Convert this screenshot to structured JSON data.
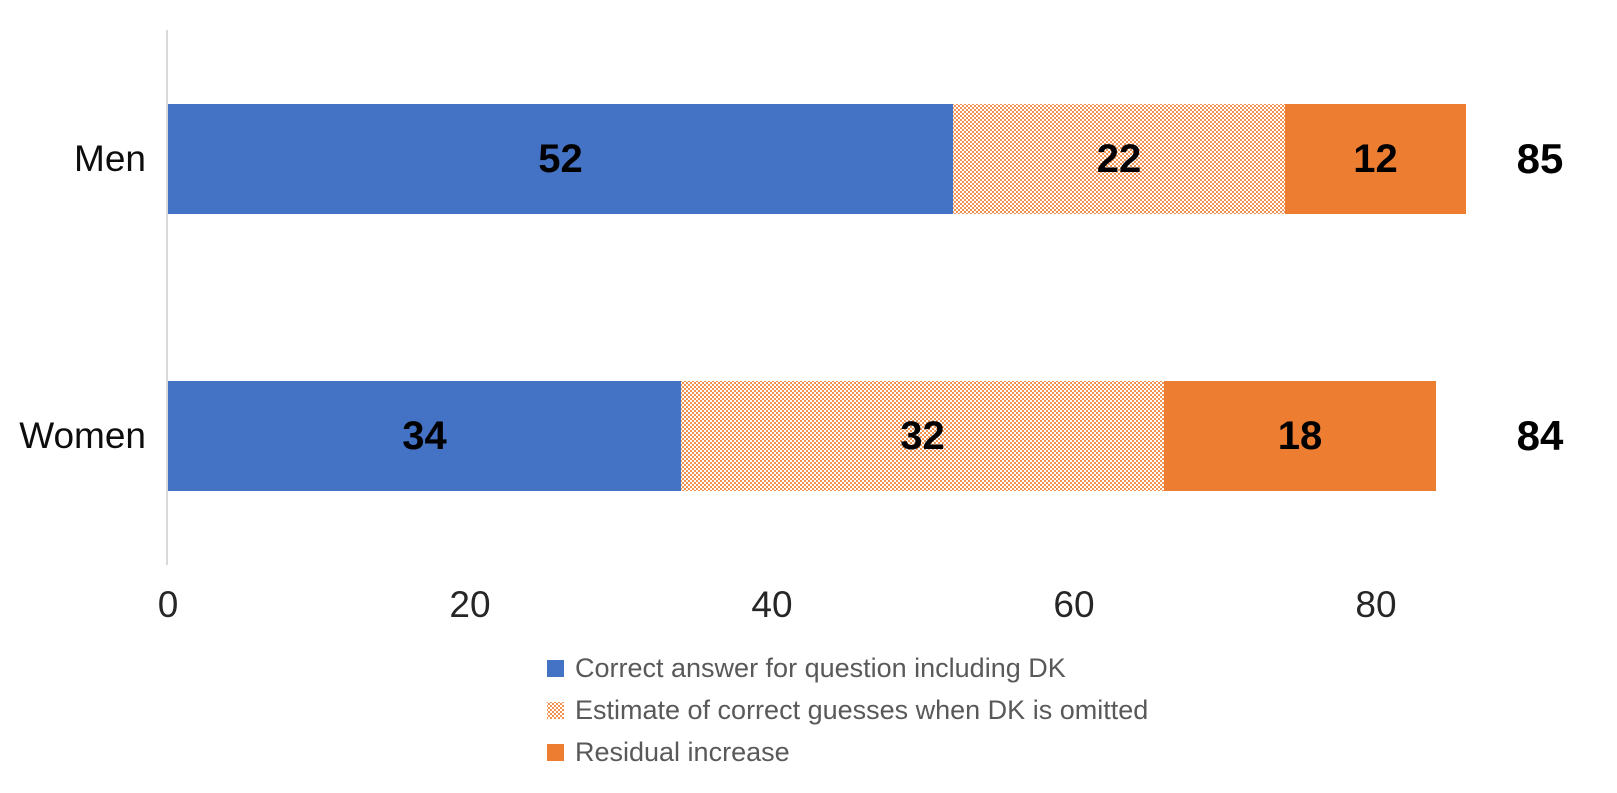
{
  "chart_data": {
    "type": "bar",
    "orientation": "horizontal",
    "stacked": true,
    "categories": [
      "Men",
      "Women"
    ],
    "series": [
      {
        "name": "Correct answer for question including DK",
        "values": [
          52,
          34
        ],
        "color": "#4472C4",
        "fill": "solid"
      },
      {
        "name": "Estimate of correct guesses when DK is omitted",
        "values": [
          22,
          32
        ],
        "color": "#ED7D31",
        "fill": "dotted"
      },
      {
        "name": "Residual increase",
        "values": [
          12,
          18
        ],
        "color": "#ED7D31",
        "fill": "solid"
      }
    ],
    "totals": [
      "85",
      "84"
    ],
    "x_ticks": [
      0,
      20,
      40,
      60,
      80
    ],
    "xlim": [
      0,
      88
    ],
    "grid": false,
    "legend_position": "bottom-left",
    "title": "",
    "xlabel": "",
    "ylabel": ""
  },
  "colors": {
    "series_blue": "#4472C4",
    "series_orange": "#ED7D31",
    "axis_line": "#D9D9D9",
    "tick_text": "#262626",
    "category_text": "#0d0d0d",
    "data_label_text": "#000000",
    "legend_text": "#595959"
  }
}
